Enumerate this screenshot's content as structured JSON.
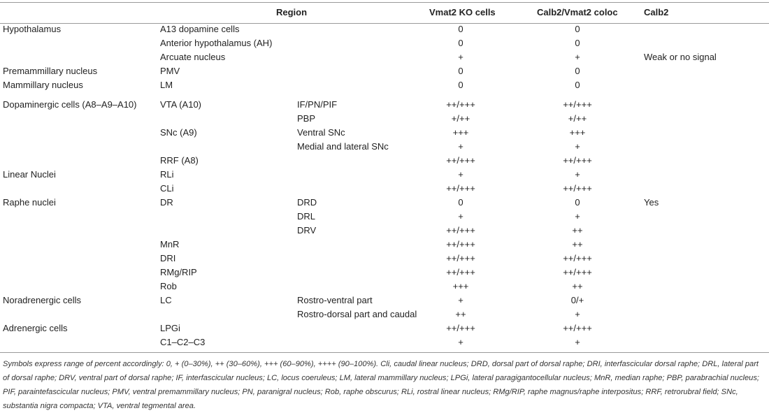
{
  "table": {
    "headers": {
      "region": "Region",
      "vmat2_ko": "Vmat2 KO cells",
      "coloc": "Calb2/Vmat2 coloc",
      "calb2": "Calb2"
    },
    "rows": [
      {
        "group": "Hypothalamus",
        "sub": "A13 dopamine cells",
        "subsub": "",
        "ko": "0",
        "coloc": "0",
        "calb2": ""
      },
      {
        "group": "",
        "sub": "Anterior hypothalamus (AH)",
        "subsub": "",
        "ko": "0",
        "coloc": "0",
        "calb2": ""
      },
      {
        "group": "",
        "sub": "Arcuate nucleus",
        "subsub": "",
        "ko": "+",
        "coloc": "+",
        "calb2": "Weak or no signal"
      },
      {
        "group": "Premammillary nucleus",
        "sub": "PMV",
        "subsub": "",
        "ko": "0",
        "coloc": "0",
        "calb2": ""
      },
      {
        "group": "Mammillary nucleus",
        "sub": "LM",
        "subsub": "",
        "ko": "0",
        "coloc": "0",
        "calb2": ""
      },
      {
        "group": "Dopaminergic cells (A8–A9–A10)",
        "sub": "VTA (A10)",
        "subsub": "IF/PN/PIF",
        "ko": "++/+++",
        "coloc": "++/+++",
        "calb2": ""
      },
      {
        "group": "",
        "sub": "",
        "subsub": "PBP",
        "ko": "+/++",
        "coloc": "+/++",
        "calb2": ""
      },
      {
        "group": "",
        "sub": "SNc (A9)",
        "subsub": "Ventral SNc",
        "ko": "+++",
        "coloc": "+++",
        "calb2": ""
      },
      {
        "group": "",
        "sub": "",
        "subsub": "Medial and lateral SNc",
        "ko": "+",
        "coloc": "+",
        "calb2": ""
      },
      {
        "group": "",
        "sub": "RRF (A8)",
        "subsub": "",
        "ko": "++/+++",
        "coloc": "++/+++",
        "calb2": ""
      },
      {
        "group": "Linear Nuclei",
        "sub": "RLi",
        "subsub": "",
        "ko": "+",
        "coloc": "+",
        "calb2": ""
      },
      {
        "group": "",
        "sub": "CLi",
        "subsub": "",
        "ko": "++/+++",
        "coloc": "++/+++",
        "calb2": ""
      },
      {
        "group": "Raphe nuclei",
        "sub": "DR",
        "subsub": "DRD",
        "ko": "0",
        "coloc": "0",
        "calb2": "Yes"
      },
      {
        "group": "",
        "sub": "",
        "subsub": "DRL",
        "ko": "+",
        "coloc": "+",
        "calb2": ""
      },
      {
        "group": "",
        "sub": "",
        "subsub": "DRV",
        "ko": "++/+++",
        "coloc": "++",
        "calb2": ""
      },
      {
        "group": "",
        "sub": "MnR",
        "subsub": "",
        "ko": "++/+++",
        "coloc": "++",
        "calb2": ""
      },
      {
        "group": "",
        "sub": "DRI",
        "subsub": "",
        "ko": "++/+++",
        "coloc": "++/+++",
        "calb2": ""
      },
      {
        "group": "",
        "sub": "RMg/RIP",
        "subsub": "",
        "ko": "++/+++",
        "coloc": "++/+++",
        "calb2": ""
      },
      {
        "group": "",
        "sub": "Rob",
        "subsub": "",
        "ko": "+++",
        "coloc": "++",
        "calb2": ""
      },
      {
        "group": "Noradrenergic cells",
        "sub": "LC",
        "subsub": "Rostro-ventral part",
        "ko": "+",
        "coloc": "0/+",
        "calb2": ""
      },
      {
        "group": "",
        "sub": "",
        "subsub": "Rostro-dorsal part and caudal",
        "ko": "++",
        "coloc": "+",
        "calb2": ""
      },
      {
        "group": "Adrenergic cells",
        "sub": "LPGi",
        "subsub": "",
        "ko": "++/+++",
        "coloc": "++/+++",
        "calb2": ""
      },
      {
        "group": "",
        "sub": "C1–C2–C3",
        "subsub": "",
        "ko": "+",
        "coloc": "+",
        "calb2": ""
      }
    ],
    "footnote": "Symbols express range of percent accordingly: 0, + (0–30%), ++ (30–60%), +++ (60–90%), ++++ (90–100%). Cli, caudal linear nucleus; DRD, dorsal part of dorsal raphe; DRI, interfascicular dorsal raphe; DRL, lateral part of dorsal raphe; DRV, ventral part of dorsal raphe; IF, interfascicular nucleus; LC, locus coeruleus; LM, lateral mammillary nucleus; LPGi, lateral paragigantocellular nucleus; MnR, median raphe; PBP, parabrachial nucleus; PIF, paraintefascicular nucleus; PMV, ventral premammillary nucleus; PN, paranigral nucleus; Rob, raphe obscurus; RLi, rostral linear nucleus; RMg/RIP, raphe magnus/raphe interpositus; RRF, retrorubral field; SNc, substantia nigra compacta; VTA, ventral tegmental area."
  }
}
